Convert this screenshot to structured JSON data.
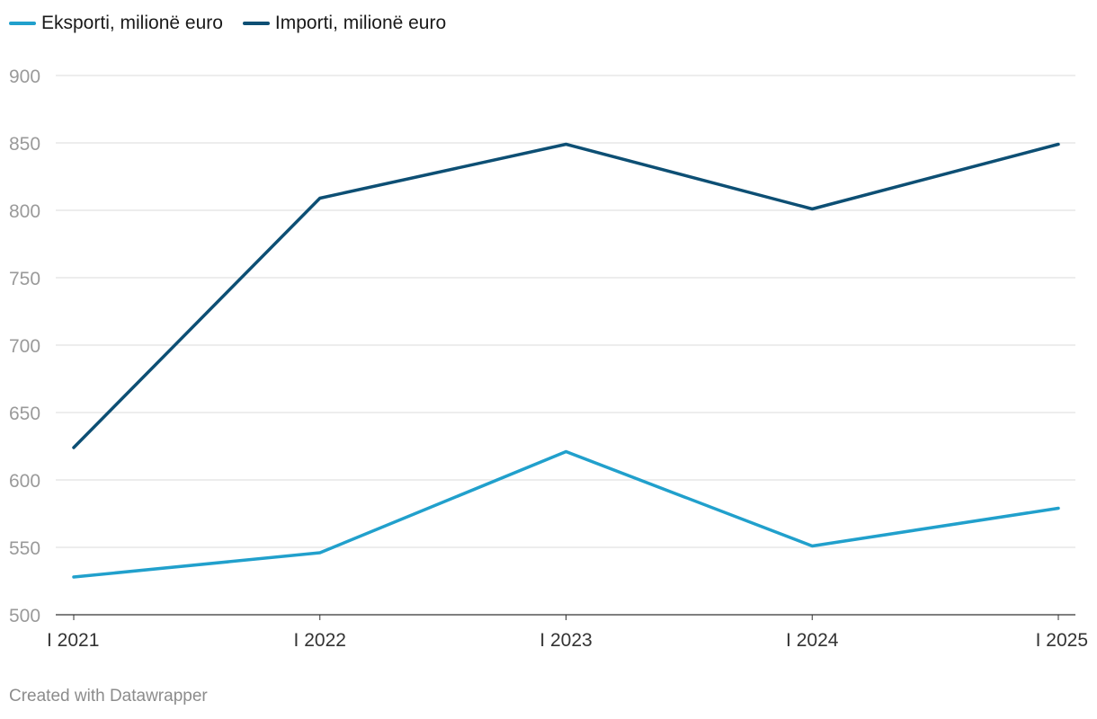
{
  "chart_data": {
    "type": "line",
    "categories": [
      "I 2021",
      "I 2022",
      "I 2023",
      "I 2024",
      "I 2025"
    ],
    "series": [
      {
        "name": "Eksporti, milionë euro",
        "color": "#21a0cc",
        "values": [
          528,
          546,
          621,
          551,
          579
        ]
      },
      {
        "name": "Importi, milionë euro",
        "color": "#0d4f74",
        "values": [
          624,
          809,
          849,
          801,
          849
        ]
      }
    ],
    "yticks": [
      500,
      550,
      600,
      650,
      700,
      750,
      800,
      850,
      900
    ],
    "ylim": [
      500,
      900
    ],
    "grid": true,
    "legend_position": "top-left"
  },
  "footer": {
    "credit": "Created with Datawrapper"
  }
}
